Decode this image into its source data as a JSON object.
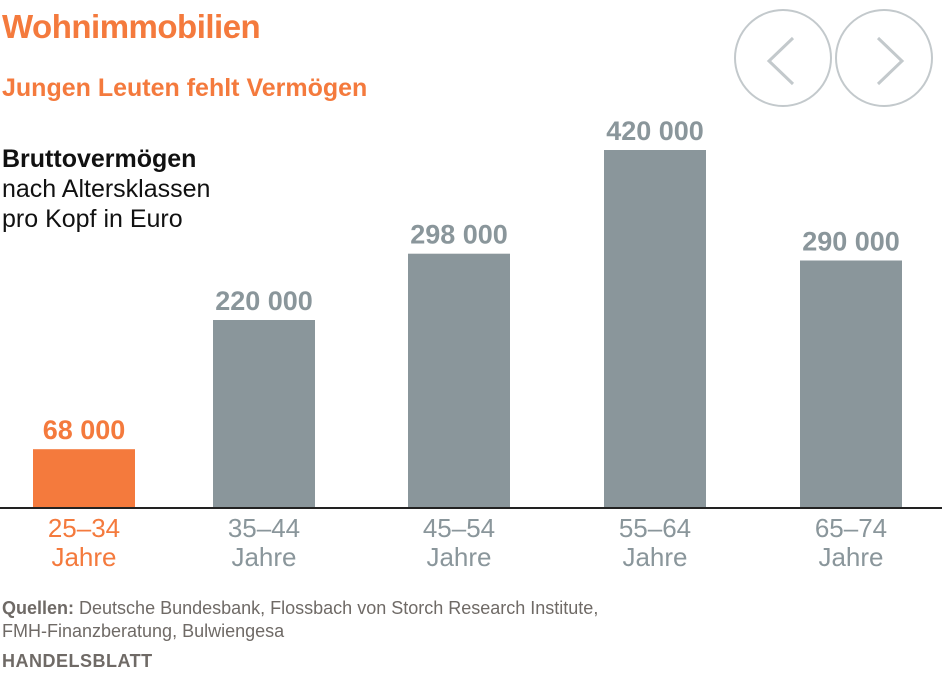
{
  "header": {
    "title": "Wohnimmobilien",
    "subtitle": "Jungen Leuten fehlt Vermögen"
  },
  "description": {
    "bold": "Bruttovermögen",
    "line1": "nach Altersklassen",
    "line2": "pro Kopf in Euro"
  },
  "nav": {
    "prev_icon": "chevron-left-icon",
    "next_icon": "chevron-right-icon"
  },
  "colors": {
    "highlight": "#f47a3d",
    "bar": "#8a969b",
    "label_gray": "#8a969b",
    "axis": "#222222"
  },
  "chart_data": {
    "type": "bar",
    "title": "Bruttovermögen nach Altersklassen pro Kopf in Euro",
    "categories": [
      [
        "25–34",
        "Jahre"
      ],
      [
        "35–44",
        "Jahre"
      ],
      [
        "45–54",
        "Jahre"
      ],
      [
        "55–64",
        "Jahre"
      ],
      [
        "65–74",
        "Jahre"
      ]
    ],
    "values": [
      68000,
      220000,
      298000,
      420000,
      290000
    ],
    "value_labels": [
      "68 000",
      "220 000",
      "298 000",
      "420 000",
      "290 000"
    ],
    "highlight_index": 0,
    "ylim": [
      0,
      420000
    ],
    "xlabel": "",
    "ylabel": ""
  },
  "footer": {
    "sources_label": "Quellen:",
    "sources_line1": "Deutsche Bundesbank, Flossbach von Storch Research Institute,",
    "sources_line2": "FMH-Finanzberatung, Bulwiengesa",
    "brand": "HANDELSBLATT"
  }
}
